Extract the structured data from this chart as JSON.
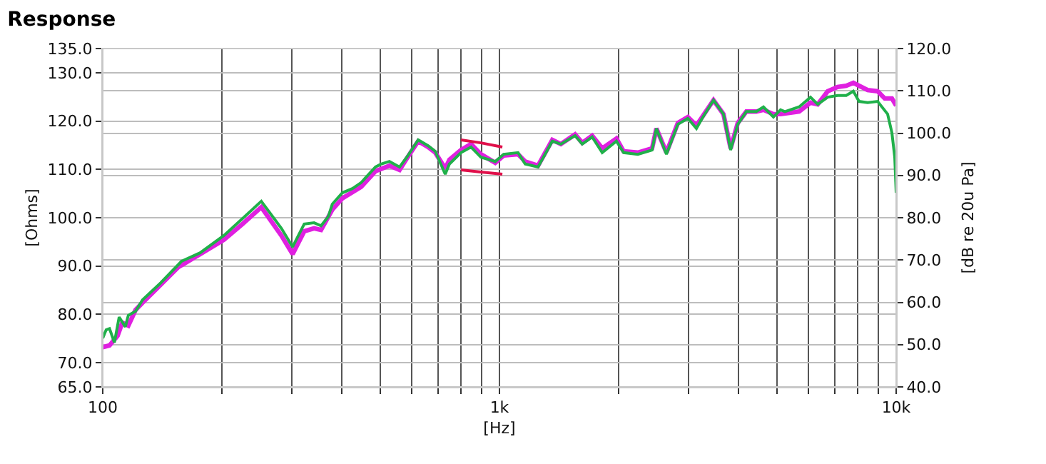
{
  "chart_data": {
    "type": "line",
    "title": "Response",
    "xlabel": "[Hz]",
    "ylabel": "[Ohms]",
    "y2label": "[dB re 20u Pa]",
    "log": "x",
    "grid": true,
    "xlim": [
      100,
      10000
    ],
    "xticks": [
      {
        "value": 100,
        "label": "100"
      },
      {
        "value": 200,
        "label": null
      },
      {
        "value": 300,
        "label": null
      },
      {
        "value": 400,
        "label": null
      },
      {
        "value": 500,
        "label": null
      },
      {
        "value": 600,
        "label": null
      },
      {
        "value": 700,
        "label": null
      },
      {
        "value": 800,
        "label": null
      },
      {
        "value": 900,
        "label": null
      },
      {
        "value": 1000,
        "label": "1k"
      },
      {
        "value": 2000,
        "label": null
      },
      {
        "value": 3000,
        "label": null
      },
      {
        "value": 4000,
        "label": null
      },
      {
        "value": 5000,
        "label": null
      },
      {
        "value": 6000,
        "label": null
      },
      {
        "value": 7000,
        "label": null
      },
      {
        "value": 8000,
        "label": null
      },
      {
        "value": 9000,
        "label": null
      },
      {
        "value": 10000,
        "label": "10k"
      }
    ],
    "ylim": [
      65,
      135
    ],
    "yticks": [
      {
        "value": 65,
        "label": "65.0"
      },
      {
        "value": 70,
        "label": "70.0"
      },
      {
        "value": 80,
        "label": "80.0"
      },
      {
        "value": 90,
        "label": "90.0"
      },
      {
        "value": 100,
        "label": "100.0"
      },
      {
        "value": 110,
        "label": "110.0"
      },
      {
        "value": 120,
        "label": "120.0"
      },
      {
        "value": 130,
        "label": "130.0"
      },
      {
        "value": 135,
        "label": "135.0"
      }
    ],
    "y2lim": [
      40,
      120
    ],
    "y2ticks": [
      {
        "value": 40,
        "label": "40.0"
      },
      {
        "value": 50,
        "label": "50.0"
      },
      {
        "value": 60,
        "label": "60.0"
      },
      {
        "value": 70,
        "label": "70.0"
      },
      {
        "value": 80,
        "label": "80.0"
      },
      {
        "value": 90,
        "label": "90.0"
      },
      {
        "value": 100,
        "label": "100.0"
      },
      {
        "value": 110,
        "label": "110.0"
      },
      {
        "value": 120,
        "label": "120.0"
      }
    ],
    "series": [
      {
        "color": "#e020e0",
        "axis": "y2",
        "x": [
          100,
          104,
          109,
          112,
          116,
          121,
          126,
          137,
          155,
          176,
          202,
          225,
          251,
          282,
          301,
          322,
          341,
          355,
          379,
          402,
          448,
          487,
          528,
          560,
          584,
          624,
          661,
          689,
          730,
          748,
          800,
          848,
          898,
          976,
          1025,
          1114,
          1161,
          1251,
          1359,
          1428,
          1551,
          1617,
          1713,
          1816,
          1972,
          2056,
          2233,
          2425,
          2487,
          2636,
          2817,
          2985,
          3137,
          3243,
          3464,
          3670,
          3826,
          3988,
          4191,
          4441,
          4630,
          4905,
          5112,
          5694,
          6083,
          6343,
          6722,
          7120,
          7482,
          7800,
          8062,
          8474,
          8979,
          9359,
          9755,
          10000
        ],
        "values": [
          49.4,
          49.8,
          52.1,
          55.2,
          54.5,
          58.2,
          59.9,
          63.3,
          68.3,
          71.4,
          74.8,
          78.5,
          82.5,
          75.8,
          71.4,
          76.8,
          77.5,
          77.1,
          81.9,
          84.6,
          87.3,
          91.0,
          92.3,
          91.3,
          94.0,
          98.1,
          96.7,
          95.4,
          91.6,
          93.7,
          96.0,
          97.4,
          95.0,
          93.0,
          94.7,
          95.0,
          93.3,
          92.3,
          98.4,
          97.4,
          99.7,
          97.7,
          99.4,
          96.4,
          98.7,
          95.7,
          95.4,
          96.4,
          101.1,
          95.4,
          102.4,
          103.8,
          101.8,
          103.8,
          107.8,
          104.5,
          96.4,
          102.4,
          105.1,
          105.1,
          105.5,
          104.5,
          104.5,
          105.1,
          107.2,
          106.8,
          109.9,
          110.9,
          111.2,
          111.9,
          111.2,
          110.2,
          109.9,
          108.2,
          108.2,
          106.5
        ]
      },
      {
        "color": "#20b04a",
        "axis": "y2",
        "x": [
          100,
          102,
          104,
          107,
          110,
          114,
          116,
          121,
          126,
          140,
          158,
          176,
          202,
          225,
          251,
          282,
          301,
          322,
          341,
          355,
          370,
          379,
          402,
          426,
          448,
          487,
          503,
          528,
          560,
          584,
          624,
          661,
          689,
          730,
          748,
          800,
          848,
          898,
          976,
          1025,
          1114,
          1161,
          1251,
          1359,
          1428,
          1551,
          1617,
          1713,
          1816,
          1972,
          2056,
          2233,
          2425,
          2487,
          2636,
          2817,
          2985,
          3137,
          3243,
          3464,
          3670,
          3826,
          3988,
          4191,
          4441,
          4630,
          4905,
          5112,
          5242,
          5694,
          6083,
          6343,
          6722,
          7120,
          7482,
          7800,
          8062,
          8474,
          8979,
          9515,
          9755,
          9918,
          10000
        ],
        "values": [
          51.5,
          53.5,
          53.8,
          50.5,
          56.5,
          54.2,
          56.9,
          57.9,
          60.6,
          64.6,
          69.7,
          71.7,
          75.8,
          79.8,
          83.9,
          77.5,
          73.1,
          78.5,
          78.8,
          78.1,
          80.2,
          83.2,
          85.9,
          86.9,
          88.3,
          92.0,
          92.7,
          93.3,
          92.0,
          94.3,
          98.4,
          97.0,
          95.7,
          90.3,
          92.7,
          95.4,
          96.7,
          94.3,
          93.3,
          95.0,
          95.4,
          92.7,
          92.0,
          98.1,
          97.4,
          99.4,
          97.4,
          99.1,
          95.4,
          98.1,
          95.4,
          95.0,
          96.0,
          101.1,
          95.0,
          102.1,
          103.5,
          101.1,
          103.5,
          107.8,
          104.5,
          96.0,
          102.1,
          105.1,
          105.1,
          106.2,
          103.8,
          105.5,
          105.1,
          106.2,
          108.5,
          106.8,
          108.5,
          108.9,
          108.9,
          109.9,
          107.5,
          107.2,
          107.5,
          104.5,
          100.1,
          94.3,
          85.9
        ]
      },
      {
        "color": "#e0104a",
        "axis": "y2",
        "x": [
          800,
          898,
          1017
        ],
        "values": [
          98.4,
          97.7,
          96.7
        ]
      },
      {
        "color": "#e0104a",
        "axis": "y2",
        "x": [
          800,
          898,
          1017
        ],
        "values": [
          91.3,
          90.8,
          90.3
        ]
      }
    ]
  }
}
